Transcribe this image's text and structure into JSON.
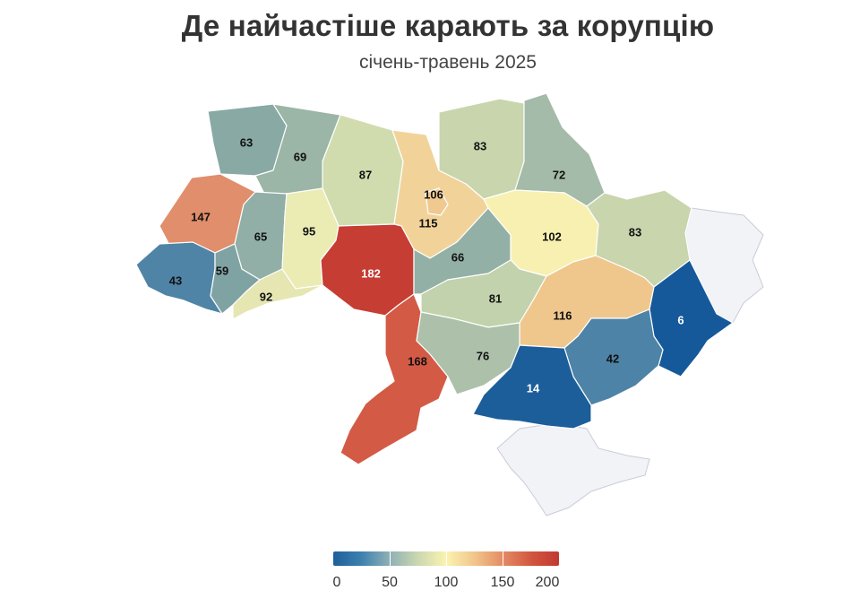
{
  "title": "Де найчастіше карають за корупцію",
  "subtitle": "січень-травень 2025",
  "colors": {
    "low": "#1f5f9a",
    "mid": "#fbf3b0",
    "high": "#c03a30",
    "occupied": "#f2f3f7"
  },
  "legend": {
    "min": 0,
    "max": 200,
    "ticks": [
      "0",
      "50",
      "100",
      "150",
      "200"
    ]
  },
  "regions": [
    {
      "id": "volyn",
      "value": "63",
      "color": "#88a9a4"
    },
    {
      "id": "rivne",
      "value": "69",
      "color": "#9bb5a6"
    },
    {
      "id": "zhytomyr",
      "value": "87",
      "color": "#d1dcae"
    },
    {
      "id": "kyiv-oblast",
      "value": "106",
      "color": "#f1d39a"
    },
    {
      "id": "kyiv-city",
      "value": "115",
      "color": "#f0c990"
    },
    {
      "id": "chernihiv",
      "value": "83",
      "color": "#c8d5ad"
    },
    {
      "id": "sumy",
      "value": "72",
      "color": "#a3bba8"
    },
    {
      "id": "lviv",
      "value": "147",
      "color": "#e08e6b"
    },
    {
      "id": "ternopil",
      "value": "65",
      "color": "#91afa6"
    },
    {
      "id": "khmelnytskyi",
      "value": "95",
      "color": "#ebebb4"
    },
    {
      "id": "vinnytsia",
      "value": "182",
      "color": "#c63d33"
    },
    {
      "id": "cherkasy",
      "value": "66",
      "color": "#93b0a6"
    },
    {
      "id": "poltava",
      "value": "102",
      "color": "#f8f0b0"
    },
    {
      "id": "kharkiv",
      "value": "83",
      "color": "#c8d5ad"
    },
    {
      "id": "zakarpattia",
      "value": "43",
      "color": "#4f84a6"
    },
    {
      "id": "ivano-frankivsk",
      "value": "59",
      "color": "#7fa3a2"
    },
    {
      "id": "chernivtsi",
      "value": "92",
      "color": "#e5e6b2"
    },
    {
      "id": "kirovohrad",
      "value": "81",
      "color": "#c2d2ac"
    },
    {
      "id": "dnipro",
      "value": "116",
      "color": "#efc78d"
    },
    {
      "id": "donetsk",
      "value": "6",
      "color": "#15599b"
    },
    {
      "id": "odesa",
      "value": "168",
      "color": "#d35a45"
    },
    {
      "id": "mykolaiv",
      "value": "76",
      "color": "#adc1aa"
    },
    {
      "id": "zaporizhzhia",
      "value": "42",
      "color": "#4d83a6"
    },
    {
      "id": "kherson",
      "value": "14",
      "color": "#1c5e9a"
    }
  ]
}
